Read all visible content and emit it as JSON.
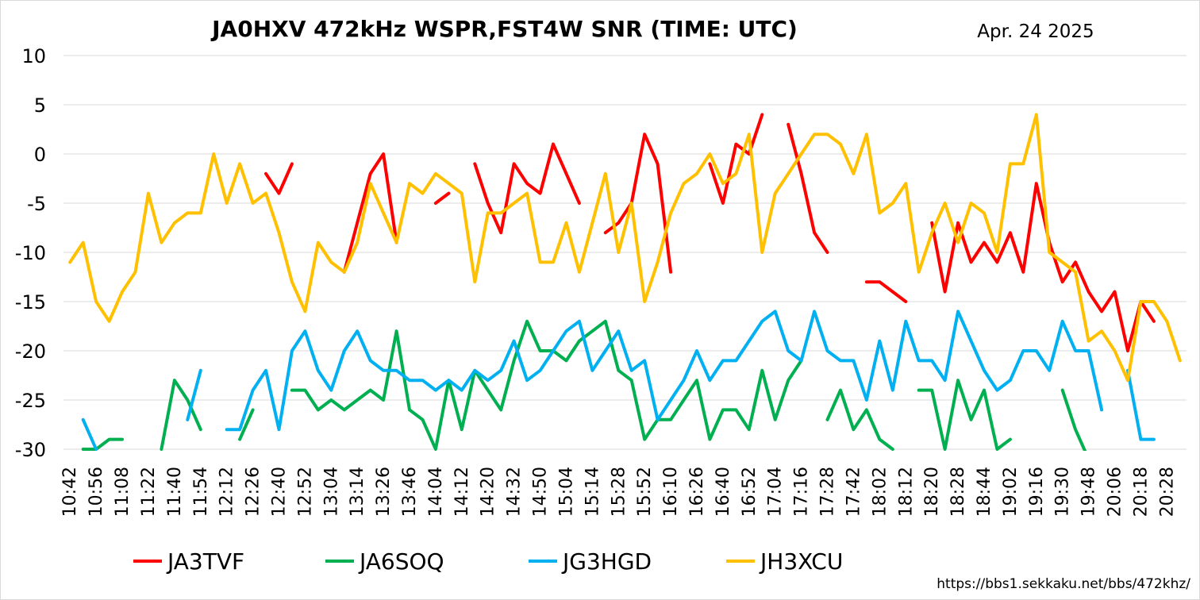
{
  "chart_data": {
    "type": "line",
    "title": "JA0HXV 472kHz WSPR,FST4W SNR (TIME: UTC)",
    "date": "Apr. 24 2025",
    "source_url": "https://bbs1.sekkaku.net/bbs/472khz/",
    "xlabel": "",
    "ylabel": "",
    "ylim": [
      -30,
      10
    ],
    "yticks": [
      10,
      5,
      0,
      -5,
      -10,
      -15,
      -20,
      -25,
      -30
    ],
    "grid": true,
    "legend_position": "bottom",
    "x_tick_labels": [
      "10:42",
      "10:56",
      "11:08",
      "11:22",
      "11:40",
      "11:54",
      "12:12",
      "12:26",
      "12:40",
      "12:52",
      "13:04",
      "13:14",
      "13:26",
      "13:46",
      "14:04",
      "14:12",
      "14:20",
      "14:32",
      "14:50",
      "15:04",
      "15:14",
      "15:28",
      "15:52",
      "16:10",
      "16:26",
      "16:40",
      "16:52",
      "17:04",
      "17:16",
      "17:28",
      "17:42",
      "18:02",
      "18:12",
      "18:20",
      "18:28",
      "18:44",
      "19:02",
      "19:16",
      "19:30",
      "19:48",
      "20:06",
      "20:18",
      "20:28"
    ],
    "series": [
      {
        "name": "JA3TVF",
        "color": "#ff0000",
        "values": [
          null,
          null,
          null,
          null,
          null,
          null,
          null,
          null,
          null,
          null,
          null,
          null,
          null,
          null,
          null,
          -2,
          -4,
          -1,
          null,
          null,
          null,
          -12,
          -7,
          -2,
          0,
          -9,
          null,
          null,
          -5,
          -4,
          null,
          -1,
          -5,
          -8,
          -1,
          -3,
          -4,
          1,
          -2,
          -5,
          null,
          -8,
          -7,
          -5,
          2,
          -1,
          -12,
          null,
          null,
          -1,
          -5,
          1,
          0,
          4,
          null,
          3,
          -2,
          -8,
          -10,
          null,
          null,
          -13,
          -13,
          -14,
          -15,
          null,
          -7,
          -14,
          -7,
          -11,
          -9,
          -11,
          -8,
          -12,
          -3,
          -9,
          -13,
          -11,
          -14,
          -16,
          -14,
          -20,
          -15,
          -17,
          null,
          null
        ]
      },
      {
        "name": "JA6SOQ",
        "color": "#00b050",
        "values": [
          null,
          -30,
          -30,
          -29,
          -29,
          null,
          null,
          -30,
          -23,
          -25,
          -28,
          null,
          null,
          -29,
          -26,
          null,
          null,
          -24,
          -24,
          -26,
          -25,
          -26,
          -25,
          -24,
          -25,
          -18,
          -26,
          -27,
          -30,
          -23,
          -28,
          -22,
          -24,
          -26,
          -21,
          -17,
          -20,
          -20,
          -21,
          -19,
          -18,
          -17,
          -22,
          -23,
          -29,
          -27,
          -27,
          -25,
          -23,
          -29,
          -26,
          -26,
          -28,
          -22,
          -27,
          -23,
          -21,
          null,
          -27,
          -24,
          -28,
          -26,
          -29,
          -30,
          null,
          -24,
          -24,
          -30,
          -23,
          -27,
          -24,
          -30,
          -29,
          null,
          null,
          null,
          -24,
          -28,
          -31,
          null,
          null,
          null,
          null,
          null,
          null,
          null
        ]
      },
      {
        "name": "JG3HGD",
        "color": "#00b0f0",
        "values": [
          null,
          -27,
          -30,
          null,
          null,
          null,
          null,
          null,
          null,
          -27,
          -22,
          null,
          -28,
          -28,
          -24,
          -22,
          -28,
          -20,
          -18,
          -22,
          -24,
          -20,
          -18,
          -21,
          -22,
          -22,
          -23,
          -23,
          -24,
          -23,
          -24,
          -22,
          -23,
          -22,
          -19,
          -23,
          -22,
          -20,
          -18,
          -17,
          -22,
          -20,
          -18,
          -22,
          -21,
          -27,
          -25,
          -23,
          -20,
          -23,
          -21,
          -21,
          -19,
          -17,
          -16,
          -20,
          -21,
          -16,
          -20,
          -21,
          -21,
          -25,
          -19,
          -24,
          -17,
          -21,
          -21,
          -23,
          -16,
          -19,
          -22,
          -24,
          -23,
          -20,
          -20,
          -22,
          -17,
          -20,
          -20,
          -26,
          null,
          -22,
          -29,
          -29,
          null,
          null
        ]
      },
      {
        "name": "JH3XCU",
        "color": "#ffc000",
        "values": [
          -11,
          -9,
          -15,
          -17,
          -14,
          -12,
          -4,
          -9,
          -7,
          -6,
          -6,
          0,
          -5,
          -1,
          -5,
          -4,
          -8,
          -13,
          -16,
          -9,
          -11,
          -12,
          -9,
          -3,
          -6,
          -9,
          -3,
          -4,
          -2,
          -3,
          -4,
          -13,
          -6,
          -6,
          -5,
          -4,
          -11,
          -11,
          -7,
          -12,
          -7,
          -2,
          -10,
          -5,
          -15,
          -11,
          -6,
          -3,
          -2,
          0,
          -3,
          -2,
          2,
          -10,
          -4,
          -2,
          0,
          2,
          2,
          1,
          -2,
          2,
          -6,
          -5,
          -3,
          -12,
          -8,
          -5,
          -9,
          -5,
          -6,
          -10,
          -1,
          -1,
          4,
          -10,
          -11,
          -12,
          -19,
          -18,
          -20,
          -23,
          -15,
          -15,
          -17,
          -21
        ]
      }
    ]
  }
}
